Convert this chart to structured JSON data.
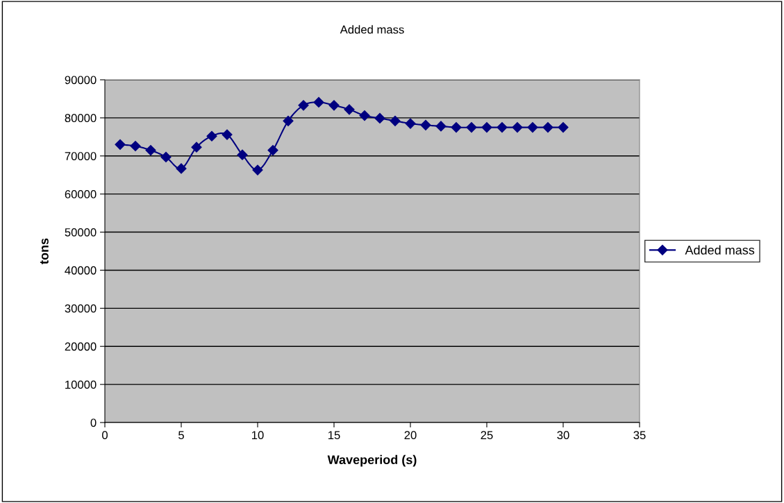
{
  "chart_data": {
    "type": "line",
    "title": "Added mass",
    "xlabel": "Waveperiod (s)",
    "ylabel": "tons",
    "x": [
      1,
      2,
      3,
      4,
      5,
      6,
      7,
      8,
      9,
      10,
      11,
      12,
      13,
      14,
      15,
      16,
      17,
      18,
      19,
      20,
      21,
      22,
      23,
      24,
      25,
      26,
      27,
      28,
      29,
      30
    ],
    "series": [
      {
        "name": "Added mass",
        "color": "#000080",
        "values": [
          73000,
          72600,
          71500,
          69700,
          66700,
          72300,
          75200,
          75600,
          70300,
          66300,
          71500,
          79200,
          83300,
          84100,
          83300,
          82200,
          80600,
          79900,
          79200,
          78500,
          78100,
          77800,
          77500,
          77500,
          77500,
          77500,
          77500,
          77500,
          77500,
          77500
        ]
      }
    ],
    "xlim": [
      0,
      35
    ],
    "xticks": [
      0,
      5,
      10,
      15,
      20,
      25,
      30,
      35
    ],
    "ylim": [
      0,
      90000
    ],
    "yticks": [
      0,
      10000,
      20000,
      30000,
      40000,
      50000,
      60000,
      70000,
      80000,
      90000
    ],
    "grid": "y",
    "legend": "right",
    "marker": "diamond",
    "line_style": "solid"
  }
}
